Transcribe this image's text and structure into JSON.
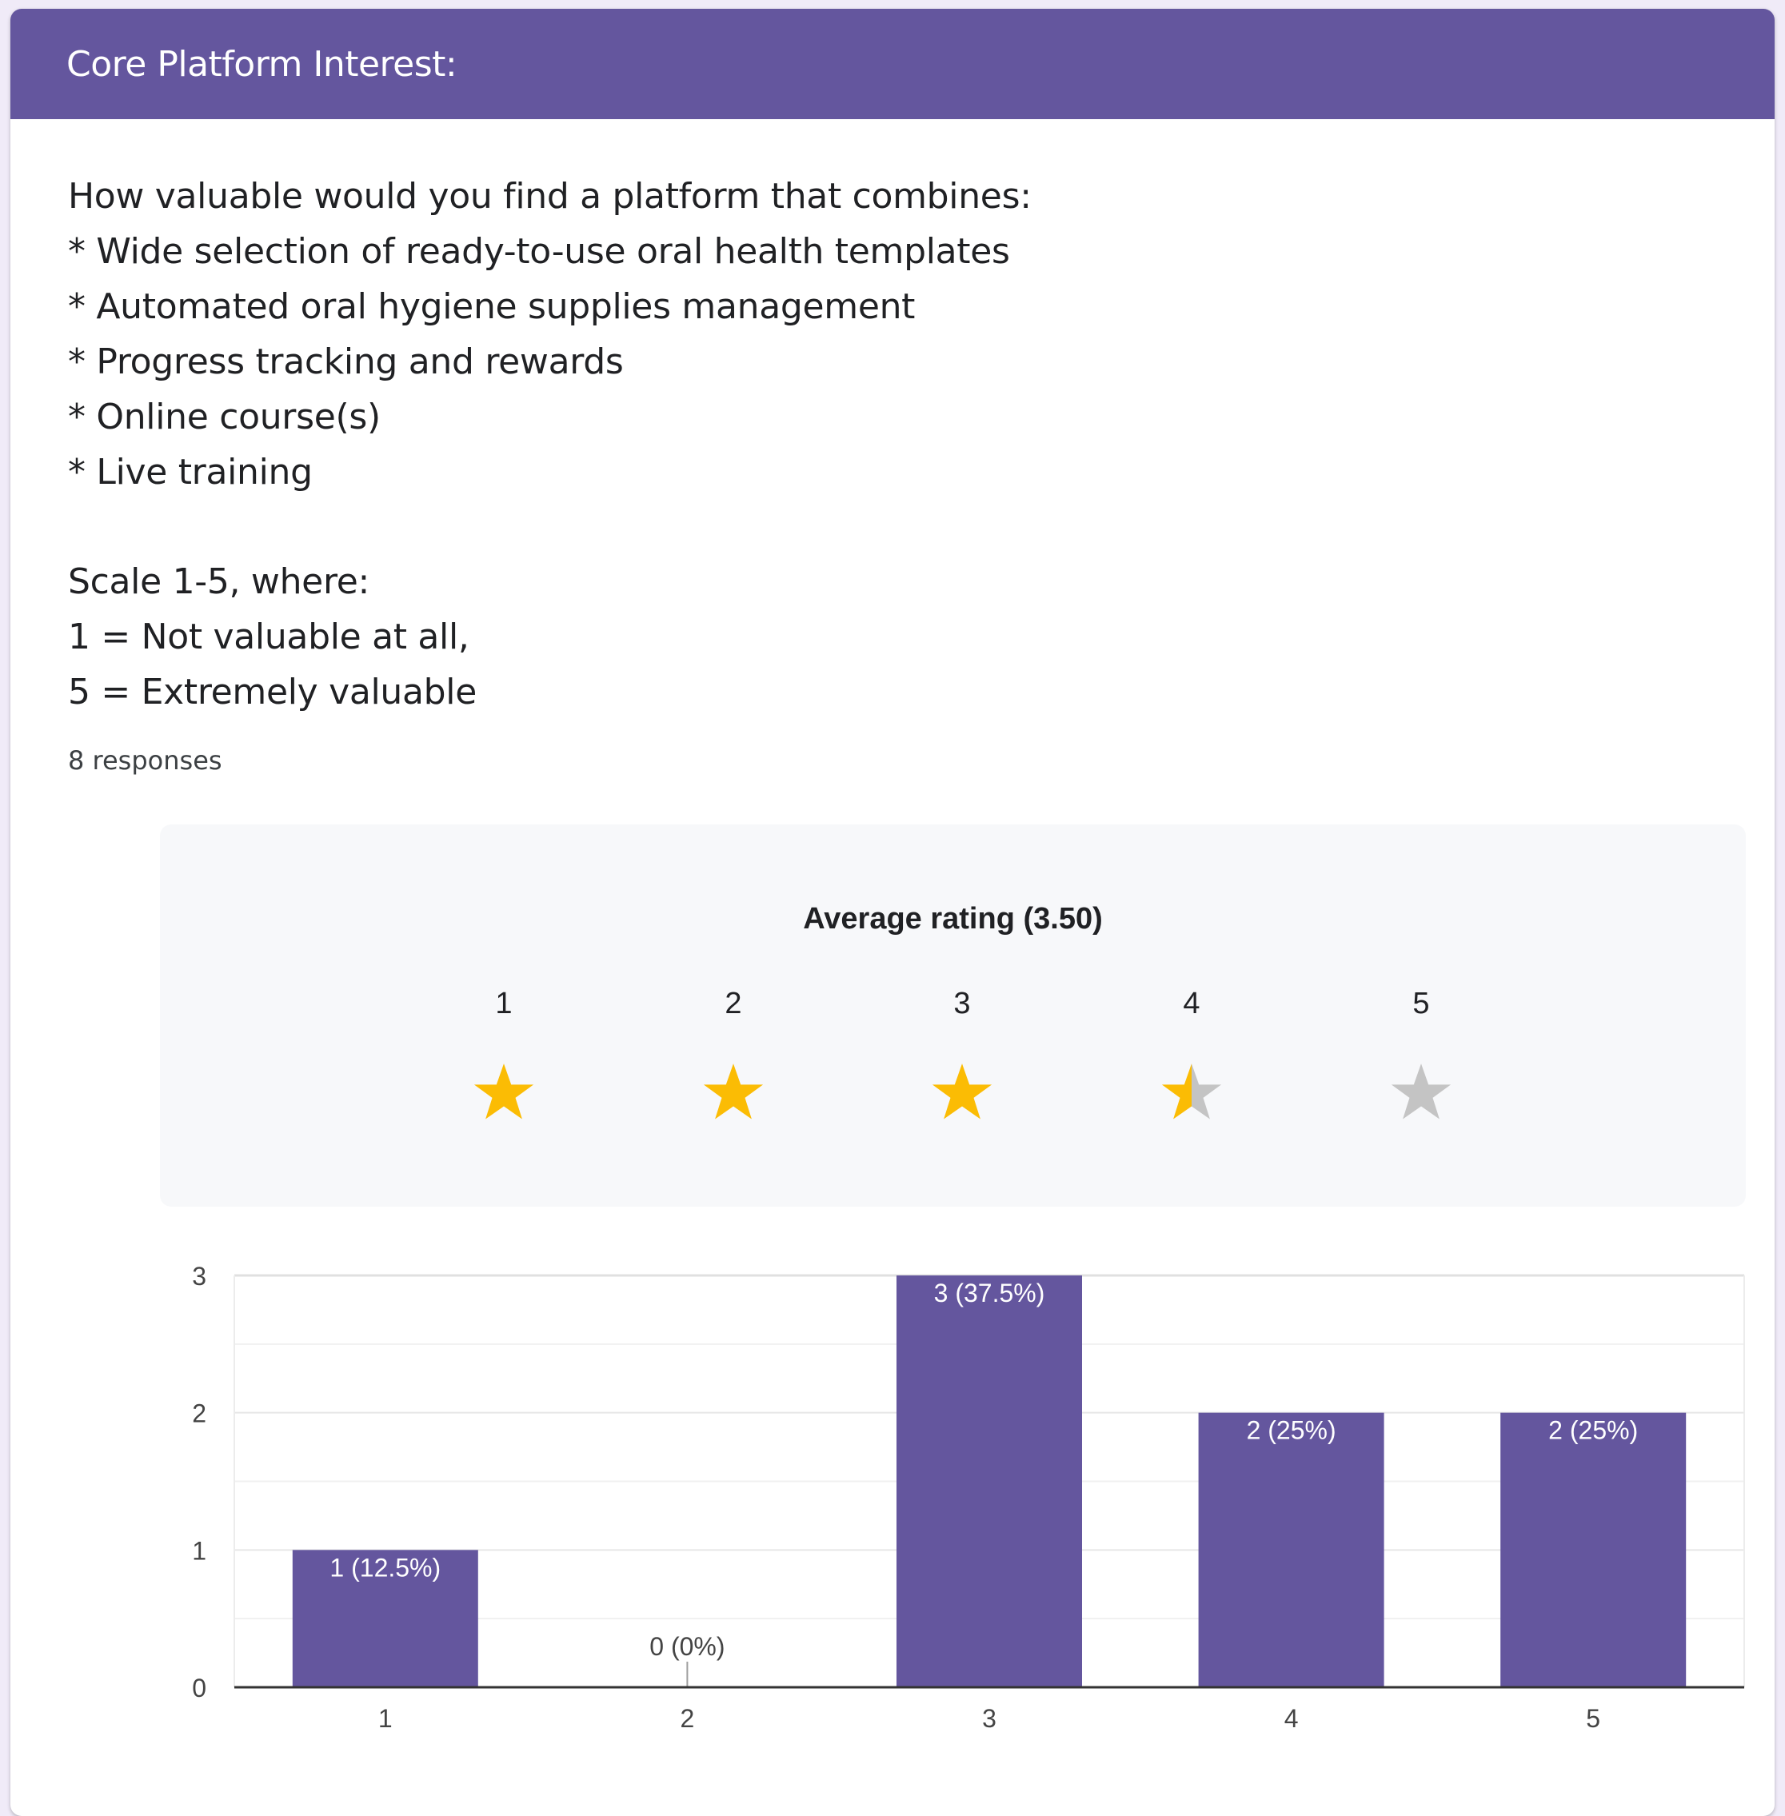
{
  "header": {
    "title": "Core Platform Interest:"
  },
  "question": {
    "lines": [
      "How valuable would you find a platform that combines:",
      "* Wide selection of ready-to-use oral health templates",
      "* Automated oral hygiene supplies management",
      "* Progress tracking and rewards",
      "* Online course(s)",
      "* Live training"
    ],
    "scale_lines": [
      "Scale 1-5, where:",
      "1 = Not valuable at all,",
      "5 = Extremely valuable"
    ]
  },
  "responses_text": "8 responses",
  "rating": {
    "title": "Average rating (3.50)",
    "average": 3.5,
    "max": 5,
    "labels": [
      "1",
      "2",
      "3",
      "4",
      "5"
    ]
  },
  "colors": {
    "header": "#64569e",
    "bar": "#64569e",
    "star_filled": "#fbbc04",
    "star_empty": "#c4c4c4",
    "rating_box_bg": "#f7f8fa"
  },
  "chart_data": {
    "type": "bar",
    "categories": [
      "1",
      "2",
      "3",
      "4",
      "5"
    ],
    "values": [
      1,
      0,
      3,
      2,
      2
    ],
    "data_labels": [
      "1 (12.5%)",
      "0 (0%)",
      "3 (37.5%)",
      "2 (25%)",
      "2 (25%)"
    ],
    "yticks": [
      0,
      1,
      2,
      3
    ],
    "ylim": [
      0,
      3
    ],
    "grid": true,
    "title": "",
    "xlabel": "",
    "ylabel": ""
  }
}
